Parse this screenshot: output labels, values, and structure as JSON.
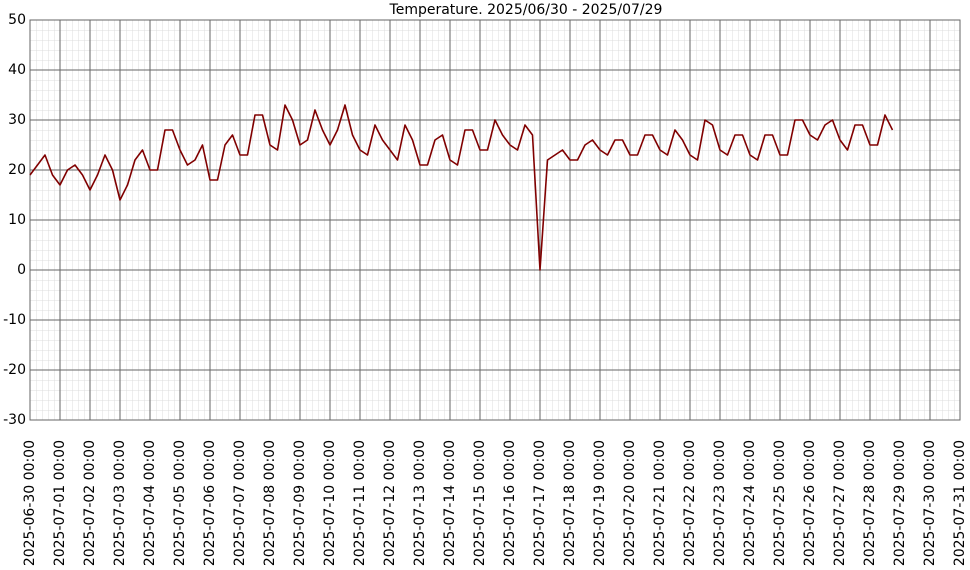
{
  "chart_data": {
    "type": "line",
    "title": "Temperature. 2025/06/30 - 2025/07/29",
    "x": [
      "2025-06-30 00:00",
      "2025-06-30 06:00",
      "2025-06-30 12:00",
      "2025-06-30 18:00",
      "2025-07-01 00:00",
      "2025-07-01 06:00",
      "2025-07-01 12:00",
      "2025-07-01 18:00",
      "2025-07-02 00:00",
      "2025-07-02 06:00",
      "2025-07-02 12:00",
      "2025-07-02 18:00",
      "2025-07-03 00:00",
      "2025-07-03 06:00",
      "2025-07-03 12:00",
      "2025-07-03 18:00",
      "2025-07-04 00:00",
      "2025-07-04 06:00",
      "2025-07-04 12:00",
      "2025-07-04 18:00",
      "2025-07-05 00:00",
      "2025-07-05 06:00",
      "2025-07-05 12:00",
      "2025-07-05 18:00",
      "2025-07-06 00:00",
      "2025-07-06 06:00",
      "2025-07-06 12:00",
      "2025-07-06 18:00",
      "2025-07-07 00:00",
      "2025-07-07 06:00",
      "2025-07-07 12:00",
      "2025-07-07 18:00",
      "2025-07-08 00:00",
      "2025-07-08 06:00",
      "2025-07-08 12:00",
      "2025-07-08 18:00",
      "2025-07-09 00:00",
      "2025-07-09 06:00",
      "2025-07-09 12:00",
      "2025-07-09 18:00",
      "2025-07-10 00:00",
      "2025-07-10 06:00",
      "2025-07-10 12:00",
      "2025-07-10 18:00",
      "2025-07-11 00:00",
      "2025-07-11 06:00",
      "2025-07-11 12:00",
      "2025-07-11 18:00",
      "2025-07-12 00:00",
      "2025-07-12 06:00",
      "2025-07-12 12:00",
      "2025-07-12 18:00",
      "2025-07-13 00:00",
      "2025-07-13 06:00",
      "2025-07-13 12:00",
      "2025-07-13 18:00",
      "2025-07-14 00:00",
      "2025-07-14 06:00",
      "2025-07-14 12:00",
      "2025-07-14 18:00",
      "2025-07-15 00:00",
      "2025-07-15 06:00",
      "2025-07-15 12:00",
      "2025-07-15 18:00",
      "2025-07-16 00:00",
      "2025-07-16 06:00",
      "2025-07-16 12:00",
      "2025-07-16 18:00",
      "2025-07-17 00:00",
      "2025-07-17 06:00",
      "2025-07-17 12:00",
      "2025-07-17 18:00",
      "2025-07-18 00:00",
      "2025-07-18 06:00",
      "2025-07-18 12:00",
      "2025-07-18 18:00",
      "2025-07-19 00:00",
      "2025-07-19 06:00",
      "2025-07-19 12:00",
      "2025-07-19 18:00",
      "2025-07-20 00:00",
      "2025-07-20 06:00",
      "2025-07-20 12:00",
      "2025-07-20 18:00",
      "2025-07-21 00:00",
      "2025-07-21 06:00",
      "2025-07-21 12:00",
      "2025-07-21 18:00",
      "2025-07-22 00:00",
      "2025-07-22 06:00",
      "2025-07-22 12:00",
      "2025-07-22 18:00",
      "2025-07-23 00:00",
      "2025-07-23 06:00",
      "2025-07-23 12:00",
      "2025-07-23 18:00",
      "2025-07-24 00:00",
      "2025-07-24 06:00",
      "2025-07-24 12:00",
      "2025-07-24 18:00",
      "2025-07-25 00:00",
      "2025-07-25 06:00",
      "2025-07-25 12:00",
      "2025-07-25 18:00",
      "2025-07-26 00:00",
      "2025-07-26 06:00",
      "2025-07-26 12:00",
      "2025-07-26 18:00",
      "2025-07-27 00:00",
      "2025-07-27 06:00",
      "2025-07-27 12:00",
      "2025-07-27 18:00",
      "2025-07-28 00:00",
      "2025-07-28 06:00",
      "2025-07-28 12:00",
      "2025-07-28 18:00"
    ],
    "values": [
      19,
      21,
      23,
      19,
      17,
      20,
      21,
      19,
      16,
      19,
      23,
      20,
      14,
      17,
      22,
      24,
      20,
      20,
      28,
      28,
      24,
      21,
      22,
      25,
      18,
      18,
      25,
      27,
      23,
      23,
      31,
      31,
      25,
      24,
      33,
      30,
      25,
      26,
      32,
      28,
      25,
      28,
      33,
      27,
      24,
      23,
      29,
      26,
      24,
      22,
      29,
      26,
      21,
      21,
      26,
      27,
      22,
      21,
      28,
      28,
      24,
      24,
      30,
      27,
      25,
      24,
      29,
      27,
      0,
      22,
      23,
      24,
      22,
      22,
      25,
      26,
      24,
      23,
      26,
      26,
      23,
      23,
      27,
      27,
      24,
      23,
      28,
      26,
      23,
      22,
      30,
      29,
      24,
      23,
      27,
      27,
      23,
      22,
      27,
      27,
      23,
      23,
      30,
      30,
      27,
      26,
      29,
      30,
      26,
      24,
      29,
      29,
      25,
      25,
      31,
      28
    ],
    "color": "#800000",
    "xlim": [
      "2025-06-30 00:00",
      "2025-07-31 00:00"
    ],
    "xticks": [
      "2025-06-30 00:00",
      "2025-07-01 00:00",
      "2025-07-02 00:00",
      "2025-07-03 00:00",
      "2025-07-04 00:00",
      "2025-07-05 00:00",
      "2025-07-06 00:00",
      "2025-07-07 00:00",
      "2025-07-08 00:00",
      "2025-07-09 00:00",
      "2025-07-10 00:00",
      "2025-07-11 00:00",
      "2025-07-12 00:00",
      "2025-07-13 00:00",
      "2025-07-14 00:00",
      "2025-07-15 00:00",
      "2025-07-16 00:00",
      "2025-07-17 00:00",
      "2025-07-18 00:00",
      "2025-07-19 00:00",
      "2025-07-20 00:00",
      "2025-07-21 00:00",
      "2025-07-22 00:00",
      "2025-07-23 00:00",
      "2025-07-24 00:00",
      "2025-07-25 00:00",
      "2025-07-26 00:00",
      "2025-07-27 00:00",
      "2025-07-28 00:00",
      "2025-07-29 00:00",
      "2025-07-30 00:00",
      "2025-07-31 00:00"
    ],
    "ylim": [
      -30,
      50
    ],
    "yticks": [
      50,
      40,
      30,
      20,
      10,
      0,
      -10,
      -20,
      -30
    ],
    "grid": true
  }
}
